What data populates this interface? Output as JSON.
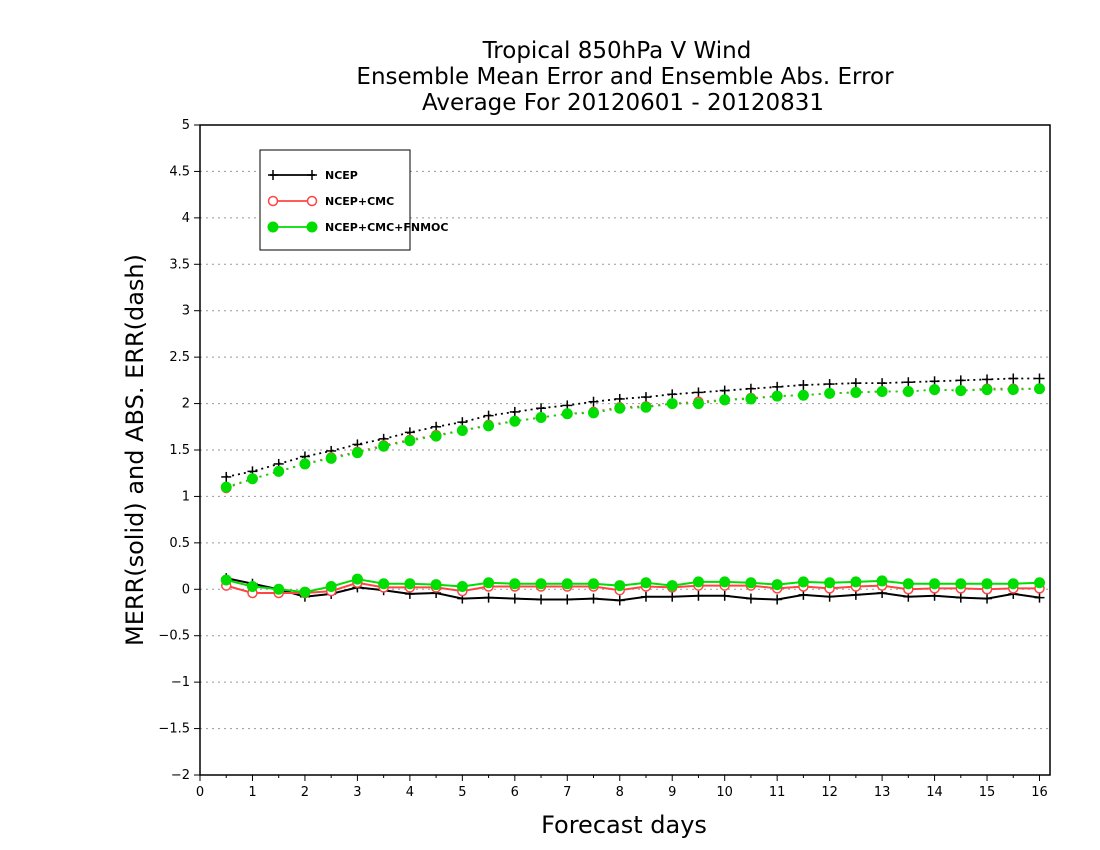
{
  "chart_data": {
    "type": "line",
    "title": [
      "Tropical 850hPa V Wind",
      "Ensemble Mean Error and Ensemble Abs. Error",
      "Average For 20120601 - 20120831"
    ],
    "xlabel": "Forecast days",
    "ylabel": "MERR(solid) and ABS. ERR(dash)",
    "xlim": [
      0,
      16.2
    ],
    "ylim": [
      -2,
      5
    ],
    "xticks": [
      "0",
      "1",
      "2",
      "3",
      "4",
      "5",
      "6",
      "7",
      "8",
      "9",
      "10",
      "11",
      "12",
      "13",
      "14",
      "15",
      "16"
    ],
    "yticks": [
      "−2",
      "−1.5",
      "−1",
      "−0.5",
      "0",
      "0.5",
      "1",
      "1.5",
      "2",
      "2.5",
      "3",
      "3.5",
      "4",
      "4.5",
      "5"
    ],
    "grid": "horizontal dotted",
    "legend_position": "top-left",
    "x": [
      0.5,
      1,
      1.5,
      2,
      2.5,
      3,
      3.5,
      4,
      4.5,
      5,
      5.5,
      6,
      6.5,
      7,
      7.5,
      8,
      8.5,
      9,
      9.5,
      10,
      10.5,
      11,
      11.5,
      12,
      12.5,
      13,
      13.5,
      14,
      14.5,
      15,
      15.5,
      16
    ],
    "series": [
      {
        "name": "NCEP",
        "color": "#000000",
        "marker": "plus",
        "merr": [
          0.12,
          0.06,
          0,
          -0.08,
          -0.05,
          0.02,
          -0.01,
          -0.05,
          -0.04,
          -0.1,
          -0.09,
          -0.1,
          -0.11,
          -0.11,
          -0.1,
          -0.12,
          -0.08,
          -0.08,
          -0.07,
          -0.07,
          -0.1,
          -0.11,
          -0.06,
          -0.08,
          -0.06,
          -0.04,
          -0.08,
          -0.07,
          -0.09,
          -0.1,
          -0.05,
          -0.09
        ],
        "abs_err": [
          1.21,
          1.27,
          1.35,
          1.43,
          1.49,
          1.56,
          1.62,
          1.69,
          1.75,
          1.8,
          1.87,
          1.91,
          1.95,
          1.98,
          2.02,
          2.05,
          2.07,
          2.1,
          2.12,
          2.14,
          2.16,
          2.18,
          2.2,
          2.21,
          2.22,
          2.22,
          2.23,
          2.24,
          2.25,
          2.26,
          2.27,
          2.27
        ]
      },
      {
        "name": "NCEP+CMC",
        "color": "#ff4444",
        "marker": "open-circle",
        "merr": [
          0.04,
          -0.04,
          -0.04,
          -0.04,
          -0.02,
          0.07,
          0.02,
          0.02,
          0.02,
          -0.02,
          0.03,
          0.03,
          0.03,
          0.03,
          0.03,
          -0.01,
          0.03,
          0.02,
          0.04,
          0.04,
          0.04,
          0.01,
          0.03,
          0.01,
          0.03,
          0.04,
          0,
          0.01,
          0.01,
          0,
          0.01,
          0.01
        ],
        "abs_err": [
          1.09,
          1.19,
          1.27,
          1.35,
          1.42,
          1.48,
          1.55,
          1.61,
          1.66,
          1.71,
          1.77,
          1.81,
          1.85,
          1.89,
          1.91,
          1.96,
          1.97,
          2,
          2.02,
          2.04,
          2.06,
          2.08,
          2.09,
          2.11,
          2.12,
          2.13,
          2.13,
          2.15,
          2.14,
          2.16,
          2.16,
          2.16
        ]
      },
      {
        "name": "NCEP+CMC+FNMOC",
        "color": "#00dd00",
        "marker": "filled-circle",
        "merr": [
          0.1,
          0.03,
          0,
          -0.03,
          0.03,
          0.11,
          0.06,
          0.06,
          0.05,
          0.03,
          0.07,
          0.06,
          0.06,
          0.06,
          0.06,
          0.04,
          0.07,
          0.04,
          0.08,
          0.08,
          0.07,
          0.05,
          0.08,
          0.07,
          0.08,
          0.09,
          0.06,
          0.06,
          0.06,
          0.06,
          0.06,
          0.07
        ],
        "abs_err": [
          1.1,
          1.19,
          1.27,
          1.35,
          1.41,
          1.47,
          1.54,
          1.6,
          1.65,
          1.71,
          1.76,
          1.81,
          1.85,
          1.89,
          1.9,
          1.95,
          1.96,
          2,
          2,
          2.04,
          2.05,
          2.08,
          2.09,
          2.11,
          2.12,
          2.13,
          2.13,
          2.15,
          2.14,
          2.15,
          2.15,
          2.16
        ]
      }
    ]
  }
}
